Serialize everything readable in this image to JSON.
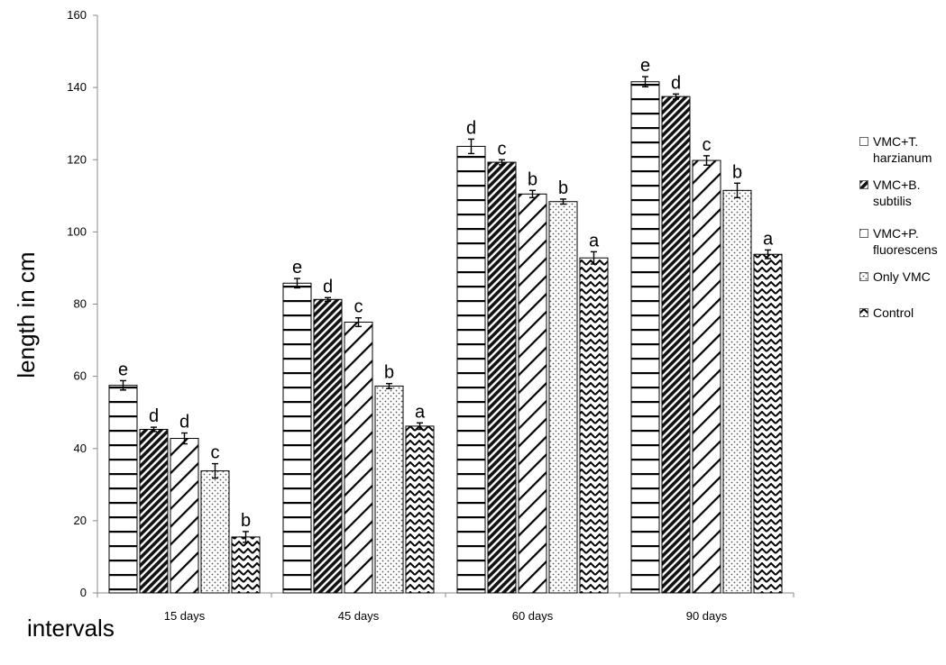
{
  "chart_data": {
    "type": "bar",
    "categories": [
      "15 days",
      "45 days",
      "60 days",
      "90 days"
    ],
    "series": [
      {
        "name": "VMC+T. harzianum",
        "name_lines": [
          "VMC+T.",
          "harzianum"
        ],
        "pattern": "hlines",
        "values": [
          57.5,
          85.8,
          123.7,
          141.6
        ],
        "errors": [
          1.3,
          1.3,
          2.0,
          1.4
        ],
        "letters": [
          "e",
          "e",
          "d",
          "e"
        ]
      },
      {
        "name": "VMC+B. subtilis",
        "name_lines": [
          "VMC+B. subtilis"
        ],
        "pattern": "dense-diag",
        "values": [
          45.3,
          81.3,
          119.3,
          137.5
        ],
        "errors": [
          0.6,
          0.5,
          0.7,
          0.7
        ],
        "letters": [
          "d",
          "d",
          "c",
          "d"
        ]
      },
      {
        "name": "VMC+P. fluorescens",
        "name_lines": [
          "VMC+P.",
          "fluorescens"
        ],
        "pattern": "wide-diag",
        "values": [
          42.8,
          75.0,
          110.5,
          119.8
        ],
        "errors": [
          1.5,
          1.2,
          1.0,
          1.3
        ],
        "letters": [
          "d",
          "c",
          "b",
          "c"
        ]
      },
      {
        "name": "Only VMC",
        "name_lines": [
          "Only VMC"
        ],
        "pattern": "dots",
        "values": [
          33.8,
          57.3,
          108.4,
          111.5
        ],
        "errors": [
          2.0,
          0.7,
          0.7,
          2.0
        ],
        "letters": [
          "c",
          "b",
          "b",
          "b"
        ]
      },
      {
        "name": "Control",
        "name_lines": [
          "Control"
        ],
        "pattern": "zigzag",
        "values": [
          15.5,
          46.2,
          92.8,
          93.8
        ],
        "errors": [
          1.5,
          0.9,
          1.7,
          1.2
        ],
        "letters": [
          "b",
          "a",
          "a",
          "a"
        ]
      }
    ],
    "title": "",
    "xlabel": "intervals",
    "ylabel": "length in cm",
    "ylim": [
      0,
      160
    ],
    "yticks": [
      0,
      20,
      40,
      60,
      80,
      100,
      120,
      140,
      160
    ],
    "grid": false,
    "legend_position": "right"
  }
}
